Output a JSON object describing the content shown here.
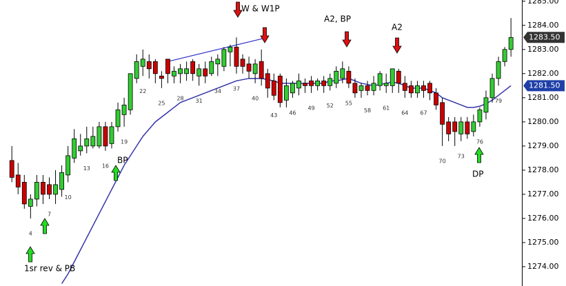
{
  "chart_data": {
    "type": "candlestick",
    "x": [
      1,
      2,
      3,
      4,
      5,
      6,
      7,
      8,
      9,
      10,
      11,
      12,
      13,
      14,
      15,
      16,
      17,
      18,
      19,
      20,
      21,
      22,
      23,
      24,
      25,
      26,
      27,
      28,
      29,
      30,
      31,
      32,
      33,
      34,
      35,
      36,
      37,
      38,
      39,
      40,
      41,
      42,
      43,
      44,
      45,
      46,
      47,
      48,
      49,
      50,
      51,
      52,
      53,
      54,
      55,
      56,
      57,
      58,
      59,
      60,
      61,
      62,
      63,
      64,
      65,
      66,
      67,
      68,
      69,
      70,
      71,
      72,
      73,
      74,
      75,
      76,
      77,
      78,
      79,
      80,
      81
    ],
    "open": [
      1278.4,
      1277.8,
      1277.5,
      1276.5,
      1276.8,
      1277.5,
      1277.4,
      1277.0,
      1277.2,
      1277.8,
      1278.5,
      1278.8,
      1279.0,
      1279.0,
      1279.0,
      1279.8,
      1279.1,
      1279.8,
      1280.3,
      1280.5,
      1281.8,
      1282.3,
      1282.5,
      1282.5,
      1281.9,
      1282.6,
      1281.9,
      1282.0,
      1282.0,
      1282.5,
      1281.9,
      1282.2,
      1282.0,
      1282.4,
      1282.3,
      1282.9,
      1283.1,
      1282.6,
      1282.4,
      1282.0,
      1282.5,
      1282.0,
      1281.7,
      1281.9,
      1280.9,
      1281.2,
      1281.4,
      1281.6,
      1281.7,
      1281.5,
      1281.7,
      1281.5,
      1281.6,
      1281.8,
      1282.1,
      1281.6,
      1281.3,
      1281.5,
      1281.3,
      1281.5,
      1281.5,
      1281.5,
      1282.1,
      1281.6,
      1281.5,
      1281.2,
      1281.5,
      1281.6,
      1281.2,
      1280.8,
      1280.0,
      1280.0,
      1279.5,
      1280.0,
      1279.6,
      1280.0,
      1280.4,
      1281.0,
      1281.8,
      1282.5,
      1283.0
    ],
    "high": [
      1279.0,
      1278.3,
      1277.8,
      1277.0,
      1277.8,
      1277.8,
      1277.7,
      1278.0,
      1278.2,
      1279.0,
      1279.7,
      1279.5,
      1279.8,
      1279.8,
      1280.0,
      1280.0,
      1280.0,
      1280.8,
      1281.0,
      1282.0,
      1282.8,
      1283.0,
      1282.8,
      1282.6,
      1282.1,
      1282.6,
      1282.3,
      1282.4,
      1282.5,
      1282.6,
      1282.4,
      1282.5,
      1282.7,
      1282.8,
      1283.1,
      1283.2,
      1283.5,
      1282.8,
      1282.7,
      1282.6,
      1283.0,
      1282.2,
      1282.0,
      1282.0,
      1281.8,
      1281.7,
      1282.0,
      1281.8,
      1281.9,
      1281.8,
      1281.9,
      1282.0,
      1282.3,
      1282.5,
      1282.3,
      1281.8,
      1281.6,
      1281.7,
      1281.9,
      1282.1,
      1282.0,
      1282.2,
      1282.2,
      1281.9,
      1281.7,
      1281.7,
      1281.7,
      1281.7,
      1281.4,
      1281.0,
      1280.2,
      1280.2,
      1280.2,
      1280.2,
      1280.3,
      1280.6,
      1281.3,
      1282.0,
      1282.7,
      1283.1,
      1284.3
    ],
    "low": [
      1277.5,
      1277.0,
      1276.4,
      1276.0,
      1276.5,
      1276.6,
      1276.8,
      1276.6,
      1276.9,
      1277.5,
      1278.3,
      1278.6,
      1278.7,
      1278.9,
      1278.9,
      1278.8,
      1278.9,
      1279.6,
      1279.8,
      1280.3,
      1281.6,
      1281.9,
      1281.8,
      1281.6,
      1281.4,
      1281.6,
      1281.6,
      1281.6,
      1281.7,
      1281.7,
      1281.5,
      1281.6,
      1281.9,
      1281.9,
      1282.1,
      1282.3,
      1282.0,
      1282.0,
      1281.8,
      1281.6,
      1281.5,
      1281.0,
      1280.9,
      1280.6,
      1280.6,
      1281.0,
      1281.1,
      1281.2,
      1281.2,
      1281.3,
      1281.2,
      1281.3,
      1281.4,
      1281.6,
      1281.4,
      1281.0,
      1281.0,
      1281.1,
      1281.1,
      1281.3,
      1281.2,
      1281.2,
      1281.2,
      1281.0,
      1281.0,
      1281.0,
      1281.0,
      1280.9,
      1280.5,
      1279.0,
      1279.2,
      1279.0,
      1279.2,
      1279.3,
      1279.4,
      1279.8,
      1280.1,
      1280.8,
      1281.5,
      1282.3,
      1282.7
    ],
    "close": [
      1277.7,
      1277.3,
      1276.6,
      1276.8,
      1277.5,
      1277.0,
      1277.0,
      1277.4,
      1277.9,
      1278.6,
      1279.3,
      1279.0,
      1279.3,
      1279.4,
      1279.8,
      1279.0,
      1279.8,
      1280.5,
      1280.7,
      1282.0,
      1282.5,
      1282.6,
      1282.2,
      1282.0,
      1281.8,
      1282.0,
      1282.1,
      1282.2,
      1282.2,
      1282.0,
      1282.2,
      1281.9,
      1282.5,
      1282.6,
      1283.0,
      1283.1,
      1282.3,
      1282.3,
      1282.1,
      1282.4,
      1281.8,
      1281.4,
      1281.1,
      1280.8,
      1281.5,
      1281.6,
      1281.7,
      1281.5,
      1281.5,
      1281.7,
      1281.5,
      1281.8,
      1282.1,
      1282.2,
      1281.6,
      1281.2,
      1281.5,
      1281.3,
      1281.6,
      1282.0,
      1281.6,
      1282.2,
      1281.6,
      1281.3,
      1281.2,
      1281.5,
      1281.3,
      1281.2,
      1280.7,
      1279.9,
      1279.5,
      1279.6,
      1280.0,
      1279.5,
      1280.0,
      1280.5,
      1281.0,
      1281.8,
      1282.5,
      1283.0,
      1283.5
    ],
    "up_color": "#33cc33",
    "down_color": "#cc0000",
    "moving_average": {
      "color": "#3333aa",
      "values": [
        null,
        null,
        null,
        null,
        null,
        null,
        null,
        null,
        1273.3,
        1273.7,
        1274.2,
        1274.7,
        1275.2,
        1275.7,
        1276.2,
        1276.7,
        1277.2,
        1277.7,
        1278.2,
        1278.6,
        1279.0,
        1279.4,
        1279.7,
        1280.0,
        1280.2,
        1280.4,
        1280.6,
        1280.8,
        1280.9,
        1281.0,
        1281.1,
        1281.2,
        1281.3,
        1281.4,
        1281.5,
        1281.6,
        1281.7,
        1281.75,
        1281.8,
        1281.8,
        1281.8,
        1281.75,
        1281.7,
        1281.6,
        1281.6,
        1281.6,
        1281.6,
        1281.6,
        1281.6,
        1281.6,
        1281.6,
        1281.7,
        1281.7,
        1281.75,
        1281.8,
        1281.7,
        1281.6,
        1281.55,
        1281.5,
        1281.55,
        1281.6,
        1281.65,
        1281.6,
        1281.5,
        1281.4,
        1281.4,
        1281.4,
        1281.3,
        1281.2,
        1281.0,
        1280.9,
        1280.8,
        1280.7,
        1280.6,
        1280.6,
        1280.65,
        1280.75,
        1280.9,
        1281.1,
        1281.3,
        1281.5
      ]
    },
    "trendline": {
      "color": "#3333cc",
      "x": [
        26,
        42
      ],
      "values": [
        1282.5,
        1283.5
      ]
    },
    "bar_labels": [
      4,
      7,
      10,
      13,
      16,
      19,
      22,
      25,
      28,
      31,
      34,
      37,
      40,
      43,
      46,
      49,
      52,
      55,
      58,
      61,
      64,
      67,
      70,
      73,
      76,
      79
    ],
    "price_markers": [
      {
        "value": 1283.5,
        "label": "1283.50",
        "color": "#333333"
      },
      {
        "value": 1281.5,
        "label": "1281.50",
        "color": "#1f3fa8"
      }
    ],
    "annotations": [
      "1sr rev & PB",
      "BP",
      "W &  W1P",
      "A2, BP",
      "A2",
      "DP"
    ],
    "xlim": [
      -0.9,
      82.75
    ],
    "ylim": [
      1273.2,
      1285.05
    ],
    "yticks": [
      {
        "value": 1274,
        "label": "1274.00"
      },
      {
        "value": 1275,
        "label": "1275.00"
      },
      {
        "value": 1276,
        "label": "1276.00"
      },
      {
        "value": 1277,
        "label": "1277.00"
      },
      {
        "value": 1278,
        "label": "1278.00"
      },
      {
        "value": 1279,
        "label": "1279.00"
      },
      {
        "value": 1280,
        "label": "1280.00"
      },
      {
        "value": 1281,
        "label": "1281.00"
      },
      {
        "value": 1282,
        "label": "1282.00"
      },
      {
        "value": 1283,
        "label": "1283.00"
      },
      {
        "value": 1284,
        "label": "1284.00"
      },
      {
        "value": 1285,
        "label": "1285.00"
      }
    ]
  }
}
